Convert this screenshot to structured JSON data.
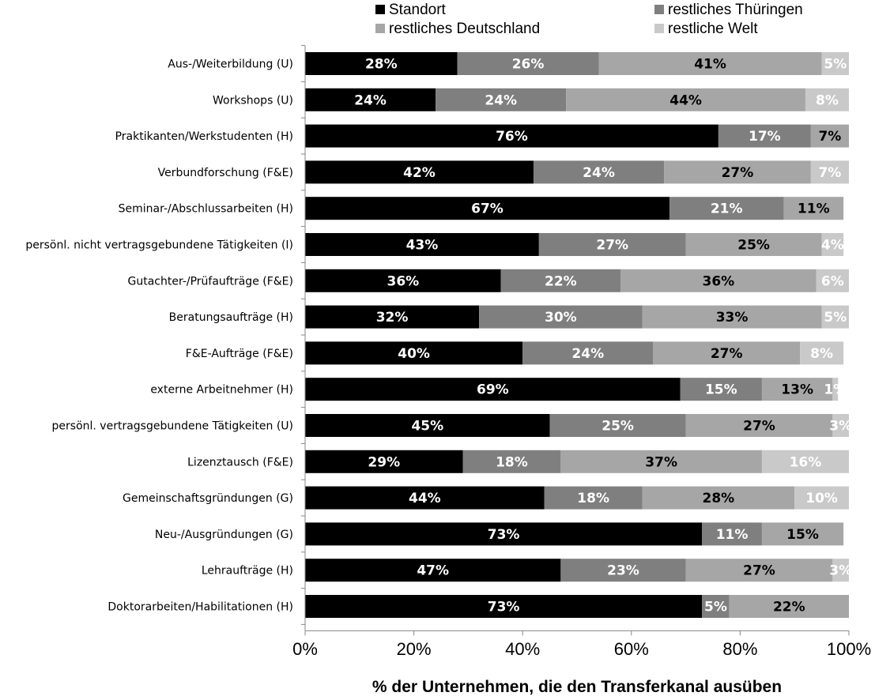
{
  "chart_data": {
    "type": "bar",
    "orientation": "horizontal",
    "stacked": true,
    "xlabel": "% der Unternehmen, die den Transferkanal ausüben",
    "xlim": [
      0,
      100
    ],
    "x_ticks": [
      "0%",
      "20%",
      "40%",
      "60%",
      "80%",
      "100%"
    ],
    "legend_position": "top",
    "grid": false,
    "categories": [
      "Aus-/Weiterbildung (U)",
      "Workshops (U)",
      "Praktikanten/Werkstudenten (H)",
      "Verbundforschung (F&E)",
      "Seminar-/Abschlussarbeiten (H)",
      "persönl. nicht vertragsgebundene Tätigkeiten (I)",
      "Gutachter-/Prüfaufträge (F&E)",
      "Beratungsaufträge (H)",
      "F&E-Aufträge (F&E)",
      "externe Arbeitnehmer (H)",
      "persönl. vertragsgebundene Tätigkeiten (U)",
      "Lizenztausch (F&E)",
      "Gemeinschaftsgründungen (G)",
      "Neu-/Ausgründungen (G)",
      "Lehraufträge (H)",
      "Doktorarbeiten/Habilitationen (H)"
    ],
    "series": [
      {
        "name": "Standort",
        "color": "#000000",
        "label_color": "#ffffff",
        "values": [
          28,
          24,
          76,
          42,
          67,
          43,
          36,
          32,
          40,
          69,
          45,
          29,
          44,
          73,
          47,
          73
        ],
        "labels": [
          "28%",
          "24%",
          "76%",
          "42%",
          "67%",
          "43%",
          "36%",
          "32%",
          "40%",
          "69%",
          "45%",
          "29%",
          "44%",
          "73%",
          "47%",
          "73%"
        ]
      },
      {
        "name": "restliches Thüringen",
        "color": "#7f7f7f",
        "label_color": "#ffffff",
        "values": [
          26,
          24,
          17,
          24,
          21,
          27,
          22,
          30,
          24,
          15,
          25,
          18,
          18,
          11,
          23,
          5
        ],
        "labels": [
          "26%",
          "24%",
          "17%",
          "24%",
          "21%",
          "27%",
          "22%",
          "30%",
          "24%",
          "15%",
          "25%",
          "18%",
          "18%",
          "11%",
          "23%",
          "5%"
        ]
      },
      {
        "name": "restliches Deutschland",
        "color": "#a6a6a6",
        "label_color": "#000000",
        "values": [
          41,
          44,
          7,
          27,
          11,
          25,
          36,
          33,
          27,
          13,
          27,
          37,
          28,
          15,
          27,
          22
        ],
        "labels": [
          "41%",
          "44%",
          "7%",
          "27%",
          "11%",
          "25%",
          "36%",
          "33%",
          "27%",
          "13%",
          "27%",
          "37%",
          "28%",
          "15%",
          "27%",
          "22%"
        ]
      },
      {
        "name": "restliche Welt",
        "color": "#c9c9c9",
        "label_color": "#ffffff",
        "values": [
          5,
          8,
          0,
          7,
          0,
          4,
          6,
          5,
          8,
          1,
          3,
          16,
          10,
          0,
          3,
          0
        ],
        "labels": [
          "5%",
          "8%",
          "",
          "7%",
          "",
          "4%",
          "6%",
          "5%",
          "8%",
          "1%",
          "3%",
          "16%",
          "10%",
          "",
          "3%",
          ""
        ]
      }
    ],
    "legend_order": [
      0,
      1,
      2,
      3
    ]
  }
}
